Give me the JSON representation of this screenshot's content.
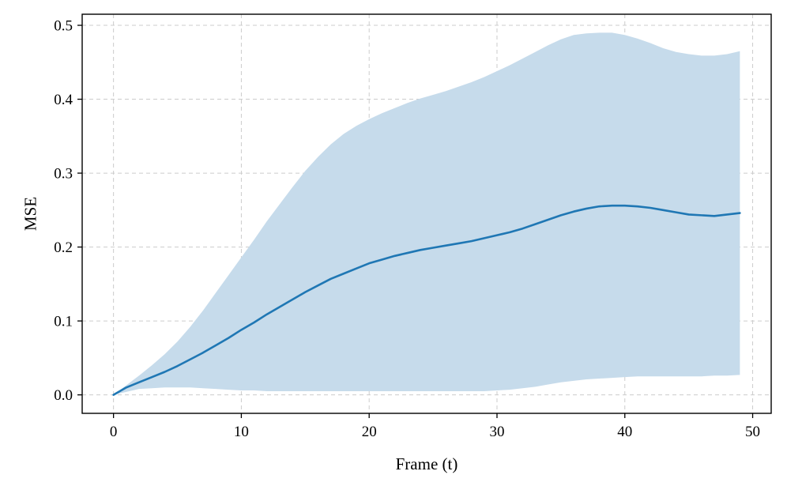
{
  "chart_data": {
    "type": "line",
    "title": "",
    "xlabel": "Frame (t)",
    "ylabel": "MSE",
    "xlim": [
      -2.45,
      51.45
    ],
    "ylim": [
      -0.025,
      0.515
    ],
    "x_ticks": [
      0,
      10,
      20,
      30,
      40,
      50
    ],
    "x_tick_labels": [
      "0",
      "10",
      "20",
      "30",
      "40",
      "50"
    ],
    "y_ticks": [
      0.0,
      0.1,
      0.2,
      0.3,
      0.4,
      0.5
    ],
    "y_tick_labels": [
      "0.0",
      "0.1",
      "0.2",
      "0.3",
      "0.4",
      "0.5"
    ],
    "grid": true,
    "legend": "none",
    "colors": {
      "line": "#1f77b4",
      "band": "#c6dbeb"
    },
    "x": [
      0,
      1,
      2,
      3,
      4,
      5,
      6,
      7,
      8,
      9,
      10,
      11,
      12,
      13,
      14,
      15,
      16,
      17,
      18,
      19,
      20,
      21,
      22,
      23,
      24,
      25,
      26,
      27,
      28,
      29,
      30,
      31,
      32,
      33,
      34,
      35,
      36,
      37,
      38,
      39,
      40,
      41,
      42,
      43,
      44,
      45,
      46,
      47,
      48,
      49
    ],
    "series": [
      {
        "values": [
          0.0,
          0.01,
          0.017,
          0.024,
          0.031,
          0.039,
          0.048,
          0.057,
          0.067,
          0.077,
          0.088,
          0.098,
          0.109,
          0.119,
          0.129,
          0.139,
          0.148,
          0.157,
          0.164,
          0.171,
          0.178,
          0.183,
          0.188,
          0.192,
          0.196,
          0.199,
          0.202,
          0.205,
          0.208,
          0.212,
          0.216,
          0.22,
          0.225,
          0.231,
          0.237,
          0.243,
          0.248,
          0.252,
          0.255,
          0.256,
          0.256,
          0.255,
          0.253,
          0.25,
          0.247,
          0.244,
          0.243,
          0.242,
          0.244,
          0.246
        ],
        "lower": [
          0.0,
          0.004,
          0.008,
          0.009,
          0.01,
          0.01,
          0.01,
          0.009,
          0.008,
          0.007,
          0.006,
          0.006,
          0.005,
          0.005,
          0.005,
          0.005,
          0.005,
          0.005,
          0.005,
          0.005,
          0.005,
          0.005,
          0.005,
          0.005,
          0.005,
          0.005,
          0.005,
          0.005,
          0.005,
          0.005,
          0.006,
          0.007,
          0.009,
          0.011,
          0.014,
          0.017,
          0.019,
          0.021,
          0.022,
          0.023,
          0.024,
          0.025,
          0.025,
          0.025,
          0.025,
          0.025,
          0.025,
          0.026,
          0.026,
          0.027
        ],
        "upper": [
          0.0,
          0.013,
          0.026,
          0.04,
          0.055,
          0.072,
          0.092,
          0.114,
          0.138,
          0.162,
          0.186,
          0.21,
          0.235,
          0.258,
          0.281,
          0.303,
          0.322,
          0.339,
          0.353,
          0.364,
          0.373,
          0.381,
          0.388,
          0.395,
          0.401,
          0.406,
          0.411,
          0.417,
          0.423,
          0.43,
          0.438,
          0.446,
          0.455,
          0.464,
          0.473,
          0.481,
          0.487,
          0.489,
          0.49,
          0.49,
          0.487,
          0.482,
          0.476,
          0.469,
          0.464,
          0.461,
          0.459,
          0.459,
          0.461,
          0.465
        ]
      }
    ]
  }
}
